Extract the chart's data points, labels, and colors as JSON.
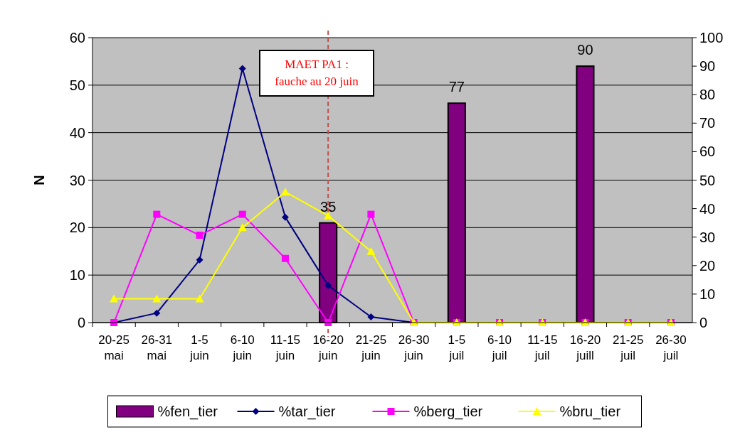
{
  "chart_data": {
    "type": "line",
    "ylabel": "N",
    "categories": [
      "20-25 mai",
      "26-31 mai",
      "1-5 juin",
      "6-10 juin",
      "11-15 juin",
      "16-20 juin",
      "21-25 juin",
      "26-30 juin",
      "1-5 juil",
      "6-10 juil",
      "11-15 juil",
      "16-20 juill",
      "21-25 juil",
      "26-30 juil"
    ],
    "series": [
      {
        "name": "%fen_tier",
        "type": "bar",
        "axis": "y2",
        "color": "#800080",
        "values": [
          0,
          0,
          0,
          0,
          0,
          35,
          0,
          0,
          77,
          0,
          0,
          90,
          0,
          0
        ],
        "value_labels": [
          null,
          null,
          null,
          null,
          null,
          "35",
          null,
          null,
          "77",
          null,
          null,
          "90",
          null,
          null
        ]
      },
      {
        "name": "%tar_tier",
        "marker": "diamond",
        "color": "#000080",
        "values": [
          0,
          2,
          13.2,
          53.5,
          22.2,
          7.8,
          1.2,
          0,
          0,
          null,
          null,
          null,
          null,
          null
        ]
      },
      {
        "name": "%berg_tier",
        "marker": "square",
        "color": "#ff00ff",
        "values": [
          0,
          22.8,
          18.4,
          22.8,
          13.5,
          0,
          22.8,
          0,
          0,
          0,
          0,
          0,
          0,
          0
        ]
      },
      {
        "name": "%bru_tier",
        "marker": "triangle",
        "color": "#ffff00",
        "values": [
          5,
          5,
          5,
          20,
          27.5,
          22.5,
          15,
          0,
          0,
          0,
          0,
          0,
          0,
          0
        ]
      }
    ],
    "ylim": [
      0,
      60
    ],
    "yticks": [
      0,
      10,
      20,
      30,
      40,
      50,
      60
    ],
    "y2lim": [
      0,
      100
    ],
    "y2ticks": [
      0,
      10,
      20,
      30,
      40,
      50,
      60,
      70,
      80,
      90,
      100
    ],
    "grid": "y",
    "legend": "bottom",
    "ref_lines": [
      {
        "axis": "x",
        "value": "16-20 juin",
        "color": "#c0504d",
        "line_style": "dashed"
      }
    ],
    "annotations": [
      "MAET PA1 :\nfauche au 20 juin"
    ]
  }
}
